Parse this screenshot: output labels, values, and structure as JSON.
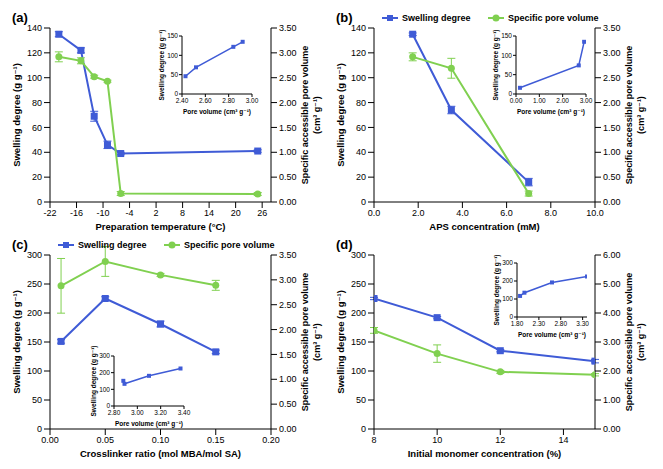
{
  "chart_data": [
    {
      "type": "line",
      "title": "(a)",
      "xlabel": "Preparation temperature (°C)",
      "ylabel": "Swelling degree (g g⁻¹)",
      "y2label": [
        "Specific accessible pore volume",
        "(cm³ g⁻¹)"
      ],
      "x": [
        -20,
        -15,
        -12,
        -9,
        -6,
        25
      ],
      "xlim": [
        -22,
        28
      ],
      "xticks": [
        -22,
        -16,
        -10,
        -4,
        2,
        8,
        14,
        20,
        26
      ],
      "ylim": [
        0,
        140
      ],
      "yticks": [
        0,
        20,
        40,
        60,
        80,
        100,
        120,
        140
      ],
      "y2lim": [
        0,
        3.5
      ],
      "y2ticks": [
        {
          "value": 0,
          "label": "0.00"
        },
        {
          "value": 0.5,
          "label": "0.50"
        },
        {
          "value": 1,
          "label": "1.00"
        },
        {
          "value": 1.5,
          "label": "1.50"
        },
        {
          "value": 2,
          "label": "2.00"
        },
        {
          "value": 2.5,
          "label": "2.50"
        },
        {
          "value": 3,
          "label": "3.00"
        },
        {
          "value": 3.5,
          "label": "3.50"
        }
      ],
      "series": [
        {
          "color": "#3f5bd6",
          "marker": "square",
          "values": [
            135,
            122,
            69,
            46,
            39,
            41
          ],
          "errors": [
            2,
            2,
            4,
            3,
            1,
            1
          ]
        },
        {
          "color": "#80d050",
          "marker": "circle",
          "axis": "y2",
          "values": [
            2.92,
            2.84,
            2.52,
            2.43,
            0.17,
            0.16
          ],
          "errors": [
            0.1,
            0.06,
            0.03,
            0.02,
            0.04,
            0.03
          ]
        }
      ],
      "inset": {
        "type": "line",
        "xlabel": "Pore volume (cm³ g⁻¹)",
        "ylabel": "Swelling degree (g g⁻¹)",
        "color": "#3f5bd6",
        "marker": "square",
        "x": [
          2.43,
          2.52,
          2.84,
          2.92
        ],
        "values": [
          46,
          69,
          122,
          135
        ],
        "xlim": [
          2.4,
          3.0
        ],
        "xticks": [
          {
            "value": 2.4,
            "label": "2.40"
          },
          {
            "value": 2.6,
            "label": "2.60"
          },
          {
            "value": 2.8,
            "label": "2.80"
          },
          {
            "value": 3.0,
            "label": "3.00"
          }
        ],
        "ylim": [
          0,
          150
        ],
        "yticks": [
          0,
          50,
          100,
          150
        ]
      }
    },
    {
      "type": "line",
      "title": "(b)",
      "xlabel": "APS concentration (mM)",
      "ylabel": "Swelling degree (g g⁻¹)",
      "y2label": [
        "Specific accessible pore volume",
        "(cm³ g⁻¹)"
      ],
      "legend": "top",
      "x": [
        1.75,
        3.5,
        7
      ],
      "xlim": [
        0,
        10
      ],
      "xticks": [
        {
          "value": 0,
          "label": "0.0"
        },
        {
          "value": 2,
          "label": "2.0"
        },
        {
          "value": 4,
          "label": "4.0"
        },
        {
          "value": 6,
          "label": "6.0"
        },
        {
          "value": 8,
          "label": "8.0"
        },
        {
          "value": 10,
          "label": "10.0"
        }
      ],
      "ylim": [
        0,
        140
      ],
      "yticks": [
        0,
        20,
        40,
        60,
        80,
        100,
        120,
        140
      ],
      "y2lim": [
        0,
        3.5
      ],
      "y2ticks": [
        {
          "value": 0,
          "label": "0.00"
        },
        {
          "value": 0.5,
          "label": "0.50"
        },
        {
          "value": 1,
          "label": "1.00"
        },
        {
          "value": 1.5,
          "label": "1.50"
        },
        {
          "value": 2,
          "label": "2.00"
        },
        {
          "value": 2.5,
          "label": "2.50"
        },
        {
          "value": 3,
          "label": "3.00"
        },
        {
          "value": 3.5,
          "label": "3.50"
        }
      ],
      "series": [
        {
          "name": "Swelling degree",
          "color": "#3f5bd6",
          "marker": "square",
          "values": [
            135,
            74,
            16
          ],
          "errors": [
            1,
            3,
            3
          ]
        },
        {
          "name": "Specific pore volume",
          "color": "#80d050",
          "marker": "circle",
          "axis": "y2",
          "values": [
            2.92,
            2.69,
            0.17
          ],
          "errors": [
            0.08,
            0.2,
            0.05
          ]
        }
      ],
      "inset": {
        "type": "line",
        "xlabel": "Pore volume (cm³ g⁻¹)",
        "ylabel": "Swelling degree (g g⁻¹)",
        "color": "#3f5bd6",
        "marker": "square",
        "x": [
          0.17,
          2.69,
          2.92
        ],
        "values": [
          16,
          74,
          135
        ],
        "xlim": [
          0,
          3
        ],
        "xticks": [
          {
            "value": 0,
            "label": "0.00"
          },
          {
            "value": 1,
            "label": "1.00"
          },
          {
            "value": 2,
            "label": "2.00"
          },
          {
            "value": 3,
            "label": "3.00"
          }
        ],
        "ylim": [
          0,
          150
        ],
        "yticks": [
          0,
          50,
          100,
          150
        ]
      }
    },
    {
      "type": "line",
      "title": "(c)",
      "xlabel": "Crosslinker ratio (mol MBA/mol SA)",
      "ylabel": "Swelling degree (g g⁻¹)",
      "y2label": [
        "Specific accessible pore volume",
        "(cm³ g⁻¹)"
      ],
      "legend": "top",
      "x": [
        0.01,
        0.05,
        0.1,
        0.15
      ],
      "xlim": [
        0,
        0.2
      ],
      "xticks": [
        {
          "value": 0,
          "label": "0.00"
        },
        {
          "value": 0.05,
          "label": "0.05"
        },
        {
          "value": 0.1,
          "label": "0.10"
        },
        {
          "value": 0.15,
          "label": "0.15"
        },
        {
          "value": 0.2,
          "label": "0.20"
        }
      ],
      "ylim": [
        0,
        300
      ],
      "yticks": [
        0,
        50,
        100,
        150,
        200,
        250,
        300
      ],
      "y2lim": [
        0,
        3.5
      ],
      "y2ticks": [
        {
          "value": 0,
          "label": "0.00"
        },
        {
          "value": 0.5,
          "label": "0.50"
        },
        {
          "value": 1,
          "label": "1.00"
        },
        {
          "value": 1.5,
          "label": "1.50"
        },
        {
          "value": 2,
          "label": "2.00"
        },
        {
          "value": 2.5,
          "label": "2.50"
        },
        {
          "value": 3,
          "label": "3.00"
        },
        {
          "value": 3.5,
          "label": "3.50"
        }
      ],
      "series": [
        {
          "name": "Swelling degree",
          "color": "#3f5bd6",
          "marker": "square",
          "values": [
            151,
            225,
            181,
            133
          ],
          "errors": [
            3,
            3,
            5,
            3
          ]
        },
        {
          "name": "Specific pore volume",
          "color": "#80d050",
          "marker": "circle",
          "axis": "y2",
          "values": [
            2.88,
            3.37,
            3.1,
            2.89
          ],
          "errors": [
            0.55,
            0.3,
            0.03,
            0.1
          ]
        }
      ],
      "inset": {
        "type": "line",
        "xlabel": "Pore volume (cm³ g⁻¹)",
        "ylabel": "Swelling degree (g g⁻¹)",
        "color": "#3f5bd6",
        "marker": "square",
        "x": [
          2.88,
          2.89,
          3.1,
          3.37
        ],
        "values": [
          151,
          133,
          181,
          225
        ],
        "xlim": [
          2.8,
          3.4
        ],
        "xticks": [
          {
            "value": 2.8,
            "label": "2.80"
          },
          {
            "value": 3.0,
            "label": "3.00"
          },
          {
            "value": 3.2,
            "label": "3.20"
          },
          {
            "value": 3.4,
            "label": "3.40"
          }
        ],
        "ylim": [
          0,
          300
        ],
        "yticks": [
          0,
          100,
          200,
          300
        ]
      }
    },
    {
      "type": "line",
      "title": "(d)",
      "xlabel": "Initial monomer concentration (%)",
      "ylabel": "Swelling degree (g g⁻¹)",
      "y2label": [
        "Specific accessible pore volume",
        "(cm³ g⁻¹)"
      ],
      "x": [
        8,
        10,
        12,
        15
      ],
      "xlim": [
        8,
        15
      ],
      "xticks": [
        8,
        10,
        12,
        14
      ],
      "ylim": [
        0,
        300
      ],
      "yticks": [
        0,
        50,
        100,
        150,
        200,
        250,
        300
      ],
      "y2lim": [
        0,
        6
      ],
      "y2ticks": [
        {
          "value": 0,
          "label": "0.00"
        },
        {
          "value": 1,
          "label": "1.00"
        },
        {
          "value": 2,
          "label": "2.00"
        },
        {
          "value": 3,
          "label": "3.00"
        },
        {
          "value": 4,
          "label": "4.00"
        },
        {
          "value": 5,
          "label": "5.00"
        },
        {
          "value": 6,
          "label": "6.00"
        }
      ],
      "series": [
        {
          "color": "#3f5bd6",
          "marker": "square",
          "values": [
            225,
            192,
            135,
            117
          ],
          "errors": [
            2,
            2,
            2,
            3
          ]
        },
        {
          "color": "#80d050",
          "marker": "circle",
          "axis": "y2",
          "values": [
            3.4,
            2.6,
            1.97,
            1.87
          ],
          "errors": [
            0.1,
            0.3,
            0.05,
            0.04
          ]
        }
      ],
      "inset": {
        "type": "line",
        "xlabel": "Pore volume (cm³ g⁻¹)",
        "ylabel": "Swelling degree (g g⁻¹)",
        "color": "#3f5bd6",
        "marker": "square",
        "x": [
          1.87,
          1.97,
          2.6,
          3.4
        ],
        "values": [
          117,
          135,
          192,
          225
        ],
        "xlim": [
          1.8,
          3.4
        ],
        "xticks": [
          {
            "value": 1.8,
            "label": "1.80"
          },
          {
            "value": 2.3,
            "label": "2.30"
          },
          {
            "value": 2.8,
            "label": "2.80"
          },
          {
            "value": 3.3,
            "label": "3.30"
          }
        ],
        "ylim": [
          0,
          300
        ],
        "yticks": [
          0,
          100,
          200,
          300
        ]
      }
    }
  ]
}
